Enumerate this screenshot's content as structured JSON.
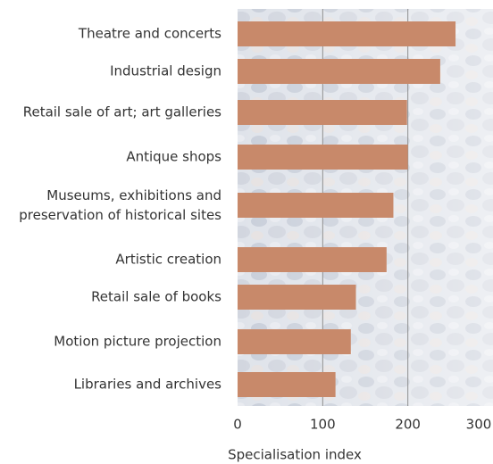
{
  "chart_data": {
    "type": "bar",
    "orientation": "horizontal",
    "categories": [
      "Theatre and concerts",
      "Industrial design",
      "Retail sale of art; art galleries",
      "Antique shops",
      "Museums, exhibitions and\npreservation of historical sites",
      "Artistic creation",
      "Retail sale of books",
      "Motion picture projection",
      "Libraries and archives"
    ],
    "values": [
      256,
      238,
      199,
      200,
      183,
      175,
      139,
      133,
      115
    ],
    "color": "#c8896a",
    "xlim": [
      0,
      300
    ],
    "xticks": [
      0,
      100,
      200,
      300
    ],
    "grid": true,
    "xlabel": "Specialisation index"
  }
}
